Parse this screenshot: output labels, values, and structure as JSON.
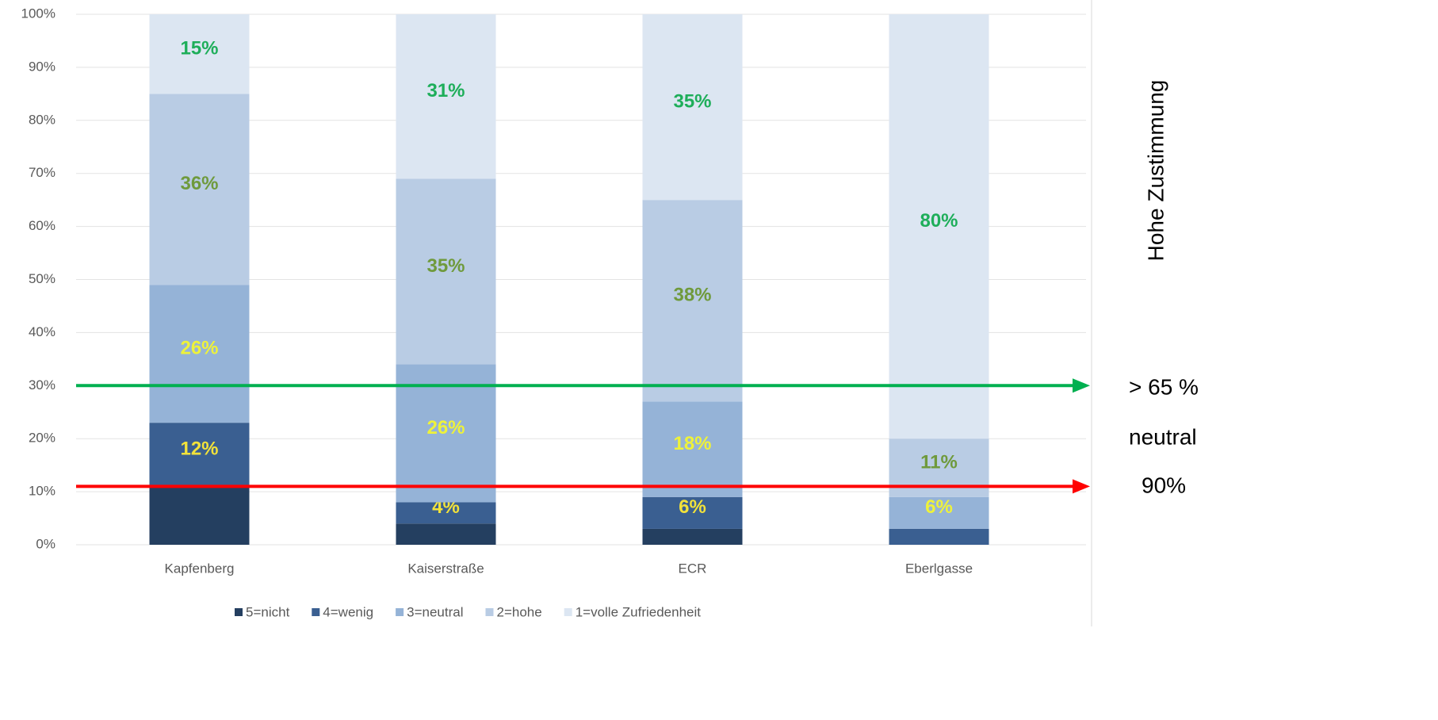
{
  "chart_data": {
    "type": "stacked_bar",
    "categories": [
      "Kapfenberg",
      "Kaiserstraße",
      "ECR",
      "Eberlgasse"
    ],
    "series": [
      {
        "name": "5=nicht",
        "color": "#243f60",
        "label_color": "#f2e23a",
        "values": [
          11,
          4,
          3,
          0
        ],
        "value_labels": [
          null,
          null,
          null,
          null
        ]
      },
      {
        "name": "4=wenig",
        "color": "#3a5f91",
        "label_color": "#f2e23a",
        "values": [
          12,
          4,
          6,
          3
        ],
        "value_labels": [
          "12%",
          "4%",
          "6%",
          null
        ]
      },
      {
        "name": "3=neutral",
        "color": "#95b3d7",
        "label_color": "#eef23a",
        "values": [
          26,
          26,
          18,
          6
        ],
        "value_labels": [
          "26%",
          "26%",
          "18%",
          "6%"
        ]
      },
      {
        "name": "2=hohe",
        "color": "#b9cce4",
        "label_color": "#6f9a3c",
        "values": [
          36,
          35,
          38,
          11
        ],
        "value_labels": [
          "36%",
          "35%",
          "38%",
          "11%"
        ]
      },
      {
        "name": "1=volle Zufriedenheit",
        "color": "#dce6f2",
        "label_color": "#1eae5a",
        "values": [
          15,
          31,
          35,
          80
        ],
        "value_labels": [
          "15%",
          "31%",
          "35%",
          "80%"
        ]
      }
    ],
    "ylim": [
      0,
      100
    ],
    "yticks": [
      {
        "value": 0,
        "label": "0%"
      },
      {
        "value": 10,
        "label": "10%"
      },
      {
        "value": 20,
        "label": "20%"
      },
      {
        "value": 30,
        "label": "30%"
      },
      {
        "value": 40,
        "label": "40%"
      },
      {
        "value": 50,
        "label": "50%"
      },
      {
        "value": 60,
        "label": "60%"
      },
      {
        "value": 70,
        "label": "70%"
      },
      {
        "value": 80,
        "label": "80%"
      },
      {
        "value": 90,
        "label": "90%"
      },
      {
        "value": 100,
        "label": "100%"
      }
    ],
    "grid": true,
    "legend": "bottom",
    "reference_lines": [
      {
        "value": 30,
        "color": "#00b050"
      },
      {
        "value": 11,
        "color": "#ff0000"
      }
    ],
    "annotations": [
      "Hohe Zustimmung",
      "> 65 %",
      "neutral",
      "90%"
    ]
  }
}
